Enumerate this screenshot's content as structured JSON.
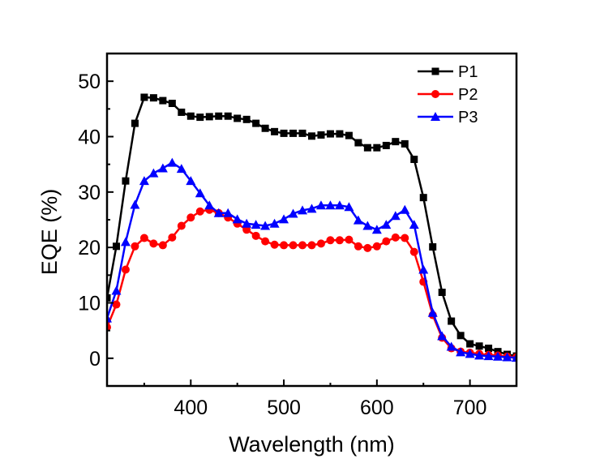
{
  "chart_data": {
    "type": "line",
    "title": "",
    "xlabel": "Wavelength (nm)",
    "ylabel": "EQE (%)",
    "xlim": [
      310,
      750
    ],
    "ylim": [
      -5,
      55
    ],
    "xticks": [
      400,
      500,
      600,
      700
    ],
    "xminor": [
      350,
      450,
      550,
      650
    ],
    "yticks": [
      0,
      10,
      20,
      30,
      40,
      50
    ],
    "yminor": [
      5,
      15,
      25,
      35,
      45
    ],
    "grid": false,
    "legend_position": "top-right",
    "x": [
      310,
      320,
      330,
      340,
      350,
      360,
      370,
      380,
      390,
      400,
      410,
      420,
      430,
      440,
      450,
      460,
      470,
      480,
      490,
      500,
      510,
      520,
      530,
      540,
      550,
      560,
      570,
      580,
      590,
      600,
      610,
      620,
      630,
      640,
      650,
      660,
      670,
      680,
      690,
      700,
      710,
      720,
      730,
      740,
      750
    ],
    "series": [
      {
        "name": "P1",
        "color": "#000000",
        "marker": "square",
        "values": [
          10.9,
          20.2,
          32.0,
          42.4,
          47.1,
          47.0,
          46.5,
          46.0,
          44.4,
          43.7,
          43.5,
          43.6,
          43.7,
          43.7,
          43.3,
          43.1,
          42.4,
          41.5,
          40.9,
          40.6,
          40.6,
          40.6,
          40.1,
          40.3,
          40.5,
          40.5,
          40.2,
          38.9,
          38.0,
          38.0,
          38.4,
          39.1,
          38.7,
          35.9,
          29.0,
          20.1,
          11.9,
          6.7,
          4.1,
          2.6,
          2.2,
          1.8,
          1.2,
          0.7,
          0.4
        ]
      },
      {
        "name": "P2",
        "color": "#ff0000",
        "marker": "circle",
        "values": [
          5.6,
          9.7,
          16.0,
          20.2,
          21.7,
          20.7,
          20.4,
          21.8,
          23.9,
          25.4,
          26.5,
          26.8,
          26.2,
          25.4,
          24.3,
          23.2,
          22.1,
          21.1,
          20.5,
          20.4,
          20.4,
          20.4,
          20.4,
          20.7,
          21.3,
          21.3,
          21.4,
          20.2,
          19.9,
          20.2,
          21.1,
          21.8,
          21.7,
          19.2,
          13.8,
          7.8,
          3.7,
          1.8,
          1.2,
          1.0,
          0.8,
          0.6,
          0.5,
          0.3,
          0.2
        ]
      },
      {
        "name": "P3",
        "color": "#0000ff",
        "marker": "triangle",
        "values": [
          7.2,
          12.2,
          21.0,
          27.7,
          32.0,
          33.4,
          34.3,
          35.3,
          34.2,
          32.0,
          29.8,
          27.6,
          26.2,
          26.2,
          25.1,
          24.3,
          24.1,
          23.9,
          24.3,
          25.1,
          26.1,
          26.7,
          27.0,
          27.6,
          27.6,
          27.6,
          27.3,
          24.9,
          23.9,
          23.2,
          24.1,
          25.7,
          26.8,
          24.1,
          16.0,
          8.2,
          4.0,
          2.1,
          1.1,
          0.8,
          0.5,
          0.4,
          0.3,
          0.2,
          0.1
        ]
      }
    ]
  }
}
